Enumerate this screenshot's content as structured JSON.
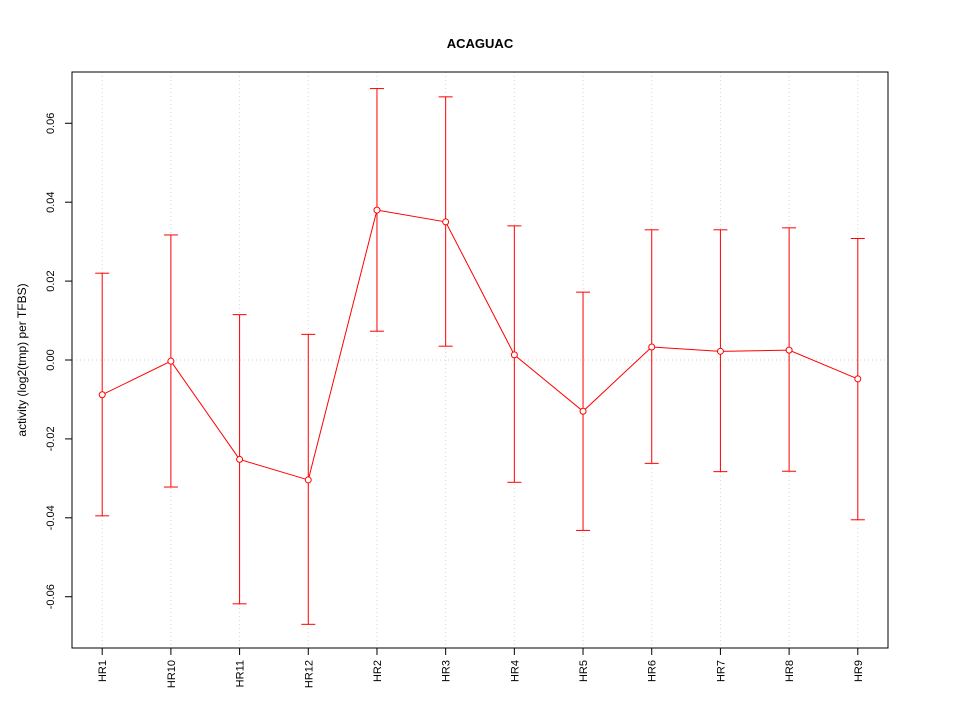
{
  "chart_data": {
    "type": "line",
    "title": "ACAGUAC",
    "xlabel": "",
    "ylabel": "activity (log2(tmp) per TFBS)",
    "categories": [
      "HR1",
      "HR10",
      "HR11",
      "HR12",
      "HR2",
      "HR3",
      "HR4",
      "HR5",
      "HR6",
      "HR7",
      "HR8",
      "HR9"
    ],
    "series": [
      {
        "values": [
          -0.0088,
          -0.0003,
          -0.0252,
          -0.0304,
          0.038,
          0.035,
          0.0013,
          -0.013,
          0.0033,
          0.0022,
          0.0025,
          -0.0048
        ],
        "upper": [
          0.022,
          0.0317,
          0.0115,
          0.0065,
          0.0688,
          0.0667,
          0.034,
          0.0172,
          0.033,
          0.033,
          0.0335,
          0.0308
        ],
        "lower": [
          -0.0395,
          -0.0322,
          -0.0618,
          -0.067,
          0.0073,
          0.0035,
          -0.031,
          -0.0432,
          -0.0262,
          -0.0283,
          -0.0282,
          -0.0405
        ]
      }
    ],
    "yticks": [
      -0.06,
      -0.04,
      -0.02,
      0.0,
      0.02,
      0.04,
      0.06
    ],
    "ytick_labels": [
      "-0.06",
      "-0.04",
      "-0.02",
      "0.00",
      "0.02",
      "0.04",
      "0.06"
    ],
    "ylim": [
      -0.073,
      0.073
    ],
    "grid": true,
    "legend": "none",
    "color": "#ff0000"
  }
}
